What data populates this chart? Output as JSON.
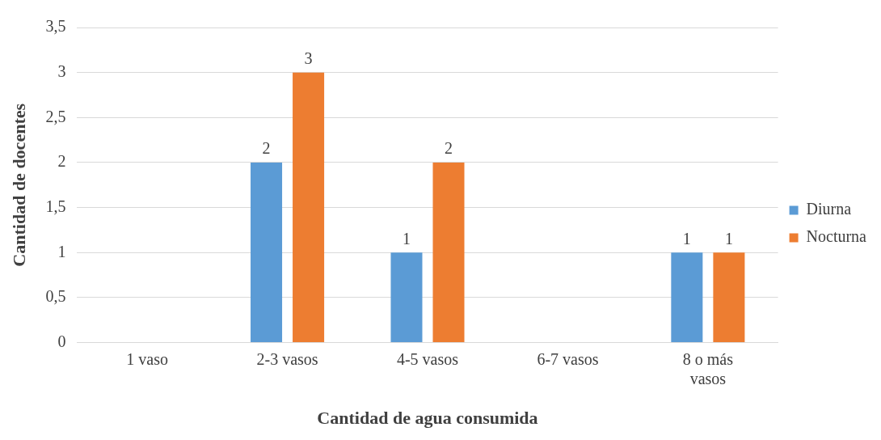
{
  "chart_data": {
    "type": "bar",
    "xlabel": "Cantidad de agua consumida",
    "ylabel": "Cantidad de docentes",
    "categories": [
      "1 vaso",
      "2-3 vasos",
      "4-5 vasos",
      "6-7 vasos",
      "8 o más vasos"
    ],
    "series": [
      {
        "name": "Diurna",
        "color": "#5b9bd5",
        "values": [
          0,
          2,
          1,
          0,
          1
        ],
        "value_labels": [
          null,
          "2",
          "1",
          null,
          "1"
        ]
      },
      {
        "name": "Nocturna",
        "color": "#ed7d31",
        "values": [
          0,
          3,
          2,
          0,
          1
        ],
        "value_labels": [
          null,
          "3",
          "2",
          null,
          "1"
        ]
      }
    ],
    "ylim": [
      0,
      3.5
    ],
    "yticks": [
      0,
      {
        "value": 0.5,
        "label": "0,5"
      },
      1,
      {
        "value": 1.5,
        "label": "1,5"
      },
      2,
      {
        "value": 2.5,
        "label": "2,5"
      },
      3,
      {
        "value": 3.5,
        "label": "3,5"
      }
    ],
    "grid": "y",
    "legend": "right"
  }
}
